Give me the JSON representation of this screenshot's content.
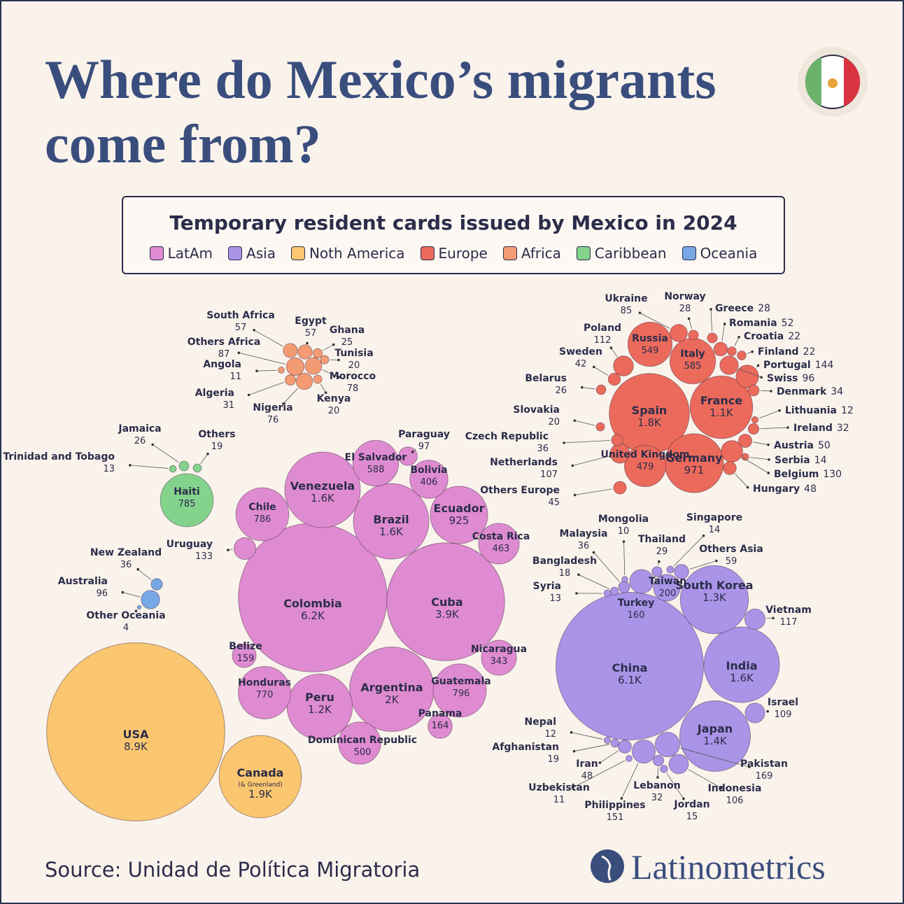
{
  "chart_data": {
    "type": "bubble",
    "title": "Where do Mexico’s migrants come from?",
    "subtitle": "Temporary resident cards issued by Mexico in 2024",
    "series": [
      {
        "name": "LatAm",
        "color": "#df8bd1",
        "categories": [
          "Colombia",
          "Cuba",
          "Argentina",
          "Venezuela",
          "Brazil",
          "Peru",
          "Ecuador",
          "Guatemala",
          "Chile",
          "Honduras",
          "El Salvador",
          "Dominican Republic",
          "Costa Rica",
          "Bolivia",
          "Nicaragua",
          "Panama",
          "Belize",
          "Uruguay",
          "Paraguay"
        ],
        "values": [
          6200,
          3900,
          2000,
          1600,
          1600,
          1200,
          925,
          796,
          786,
          770,
          588,
          500,
          463,
          406,
          343,
          164,
          159,
          133,
          97
        ],
        "value_labels": [
          "6.2K",
          "3.9K",
          "2K",
          "1.6K",
          "1.6K",
          "1.2K",
          "925",
          "796",
          "786",
          "770",
          "588",
          "500",
          "463",
          "406",
          "343",
          "164",
          "159",
          "133",
          "97"
        ]
      },
      {
        "name": "Asia",
        "color": "#a994e8",
        "categories": [
          "China",
          "India",
          "Japan",
          "South Korea",
          "Taiwan",
          "Pakistan",
          "Turkey",
          "Philippines",
          "Vietnam",
          "Israel",
          "Indonesia",
          "Others Asia",
          "Malaysia",
          "Lebanon",
          "Iran",
          "Thailand",
          "Afghanistan",
          "Bangladesh",
          "Jordan",
          "Singapore",
          "Syria",
          "Nepal",
          "Uzbekistan",
          "Mongolia"
        ],
        "values": [
          6100,
          1600,
          1400,
          1300,
          200,
          169,
          160,
          151,
          117,
          109,
          106,
          59,
          36,
          32,
          48,
          29,
          19,
          18,
          15,
          14,
          13,
          12,
          11,
          10
        ],
        "value_labels": [
          "6.1K",
          "1.6K",
          "1.4K",
          "1.3K",
          "200",
          "169",
          "160",
          "151",
          "117",
          "109",
          "106",
          "59",
          "36",
          "32",
          "48",
          "29",
          "19",
          "18",
          "15",
          "14",
          "13",
          "12",
          "11",
          "10"
        ]
      },
      {
        "name": "Noth America",
        "color": "#fbc670",
        "categories": [
          "USA",
          "Canada"
        ],
        "values": [
          8900,
          1900
        ],
        "value_labels": [
          "8.9K",
          "1.9K"
        ]
      },
      {
        "name": "Europe",
        "color": "#ec6a5c",
        "categories": [
          "Spain",
          "France",
          "Germany",
          "Italy",
          "Russia",
          "United Kingdom",
          "Portugal",
          "Belgium",
          "Poland",
          "Netherlands",
          "Swiss",
          "Ukraine",
          "Romania",
          "Hungary",
          "Austria",
          "Others Europe",
          "Sweden",
          "Czech Republic",
          "Denmark",
          "Ireland",
          "Greece",
          "Norway",
          "Belarus",
          "Croatia",
          "Finland",
          "Slovakia",
          "Serbia",
          "Lithuania"
        ],
        "values": [
          1800,
          1100,
          971,
          585,
          549,
          479,
          144,
          130,
          112,
          107,
          96,
          85,
          52,
          48,
          50,
          45,
          42,
          36,
          34,
          32,
          28,
          28,
          26,
          22,
          22,
          20,
          14,
          12
        ],
        "value_labels": [
          "1.8K",
          "1.1K",
          "971",
          "585",
          "549",
          "479",
          "144",
          "130",
          "112",
          "107",
          "96",
          "85",
          "52",
          "48",
          "50",
          "45",
          "42",
          "36",
          "34",
          "32",
          "28",
          "28",
          "26",
          "22",
          "22",
          "20",
          "14",
          "12"
        ]
      },
      {
        "name": "Africa",
        "color": "#f59b74",
        "categories": [
          "Others Africa",
          "Morocco",
          "Nigeria",
          "South Africa",
          "Egypt",
          "Algeria",
          "Ghana",
          "Tunisia",
          "Kenya",
          "Angola"
        ],
        "values": [
          87,
          78,
          76,
          57,
          57,
          31,
          25,
          20,
          20,
          11
        ],
        "value_labels": [
          "87",
          "78",
          "76",
          "57",
          "57",
          "31",
          "25",
          "20",
          "20",
          "11"
        ]
      },
      {
        "name": "Caribbean",
        "color": "#84d38d",
        "categories": [
          "Haiti",
          "Jamaica",
          "Others",
          "Trinidad and Tobago"
        ],
        "values": [
          785,
          26,
          19,
          13
        ],
        "value_labels": [
          "785",
          "26",
          "19",
          "13"
        ]
      },
      {
        "name": "Oceania",
        "color": "#78a7e6",
        "categories": [
          "Australia",
          "New Zealand",
          "Other Oceania"
        ],
        "values": [
          96,
          36,
          4
        ],
        "value_labels": [
          "96",
          "36",
          "4"
        ]
      }
    ],
    "annotations": [
      "(& Greenland)"
    ]
  },
  "source": "Source: Unidad de Política Migratoria",
  "brand": "Latinometrics"
}
